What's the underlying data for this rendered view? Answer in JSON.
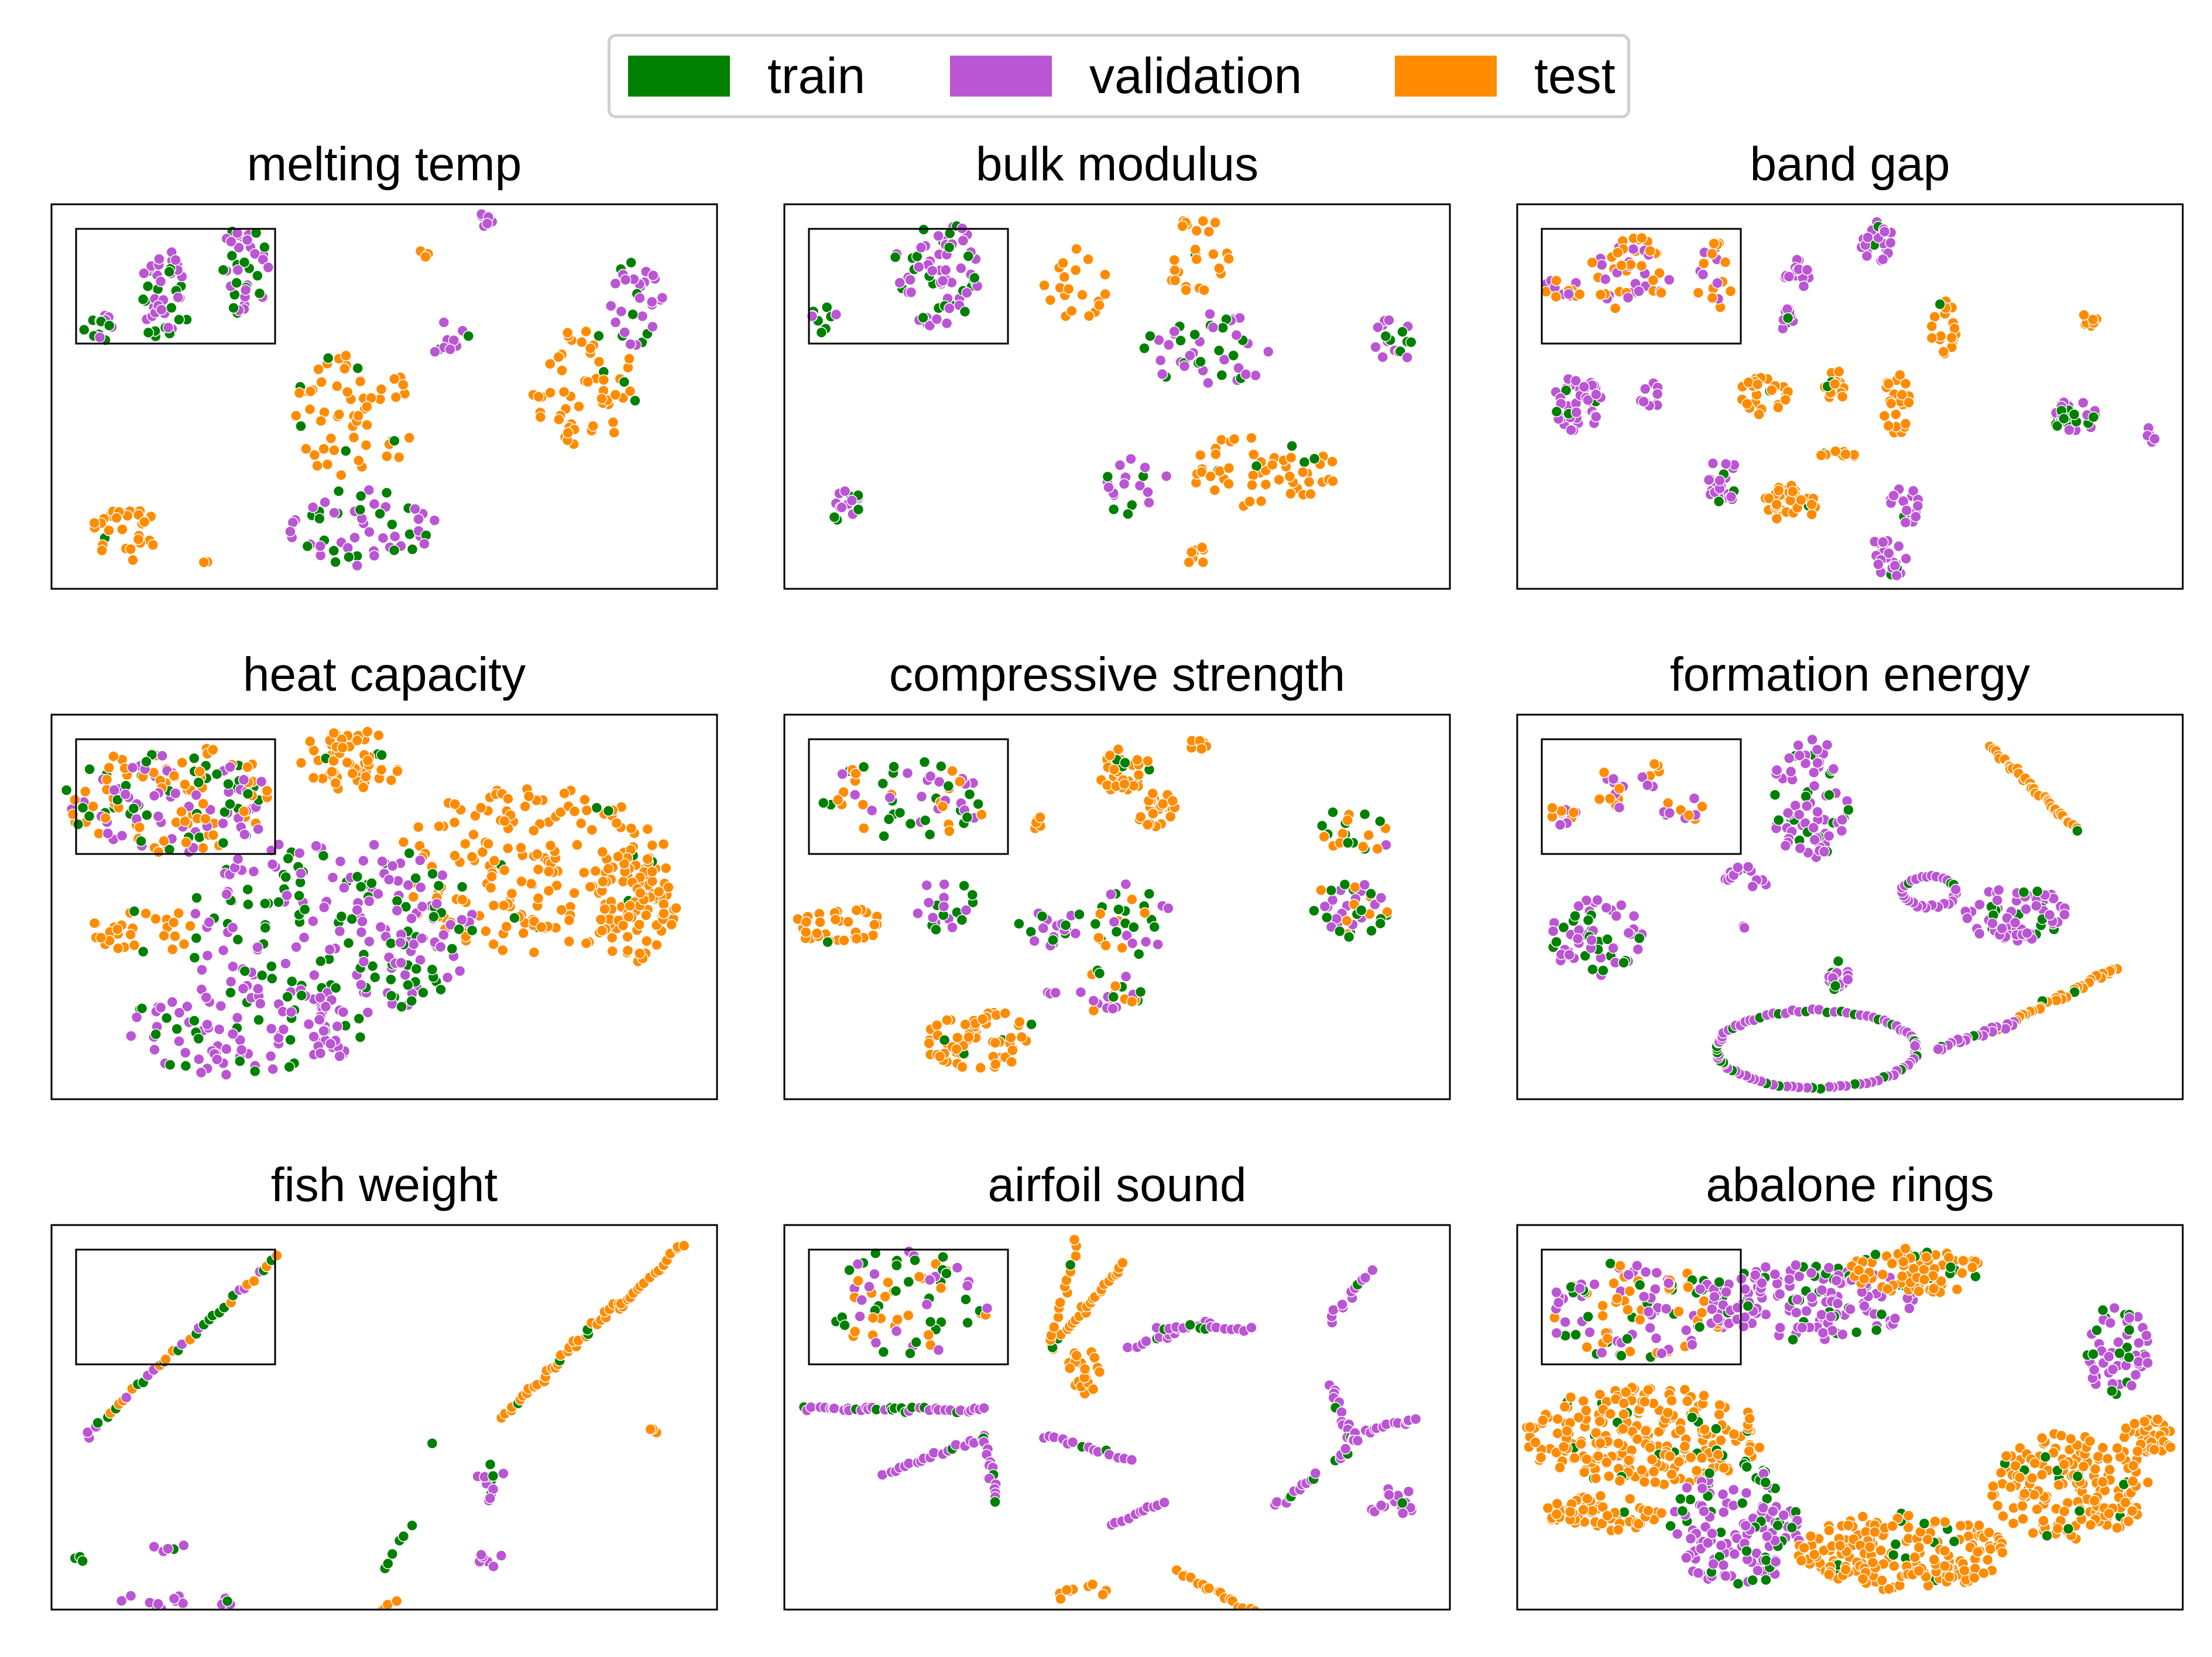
{
  "legend": [
    {
      "name": "train",
      "color": "#008000"
    },
    {
      "name": "validation",
      "color": "#BA55D3"
    },
    {
      "name": "test",
      "color": "#FF8C00"
    }
  ],
  "chart_data": [
    {
      "type": "scatter",
      "title": "melting temp",
      "clusters": [
        {
          "mix": "train_val",
          "cx": 0.07,
          "cy": 0.32,
          "rx": 0.025,
          "ry": 0.04,
          "n": 14
        },
        {
          "mix": "train_val",
          "cx": 0.17,
          "cy": 0.24,
          "rx": 0.04,
          "ry": 0.12,
          "n": 45
        },
        {
          "mix": "train_val",
          "cx": 0.29,
          "cy": 0.17,
          "rx": 0.04,
          "ry": 0.12,
          "n": 40
        },
        {
          "mix": "val",
          "cx": 0.65,
          "cy": 0.05,
          "rx": 0.015,
          "ry": 0.03,
          "n": 7
        },
        {
          "mix": "test",
          "cx": 0.55,
          "cy": 0.13,
          "rx": 0.02,
          "ry": 0.01,
          "n": 4
        },
        {
          "mix": "train_val",
          "cx": 0.6,
          "cy": 0.35,
          "rx": 0.03,
          "ry": 0.07,
          "n": 10
        },
        {
          "mix": "test",
          "cx": 0.8,
          "cy": 0.48,
          "rx": 0.08,
          "ry": 0.16,
          "n": 55
        },
        {
          "mix": "train_val",
          "cx": 0.88,
          "cy": 0.25,
          "rx": 0.04,
          "ry": 0.12,
          "n": 30
        },
        {
          "mix": "test",
          "cx": 0.45,
          "cy": 0.55,
          "rx": 0.1,
          "ry": 0.17,
          "n": 60
        },
        {
          "mix": "train_val",
          "cx": 0.46,
          "cy": 0.84,
          "rx": 0.12,
          "ry": 0.1,
          "n": 55
        },
        {
          "mix": "test",
          "cx": 0.11,
          "cy": 0.85,
          "rx": 0.05,
          "ry": 0.08,
          "n": 30
        },
        {
          "mix": "test",
          "cx": 0.23,
          "cy": 0.93,
          "rx": 0.006,
          "ry": 0.006,
          "n": 2
        }
      ]
    },
    {
      "type": "scatter",
      "title": "bulk modulus",
      "clusters": [
        {
          "mix": "train_val",
          "cx": 0.06,
          "cy": 0.3,
          "rx": 0.02,
          "ry": 0.04,
          "n": 10
        },
        {
          "mix": "train_val",
          "cx": 0.23,
          "cy": 0.18,
          "rx": 0.07,
          "ry": 0.14,
          "n": 70
        },
        {
          "mix": "test",
          "cx": 0.44,
          "cy": 0.2,
          "rx": 0.05,
          "ry": 0.1,
          "n": 20
        },
        {
          "mix": "test",
          "cx": 0.62,
          "cy": 0.13,
          "rx": 0.06,
          "ry": 0.1,
          "n": 25
        },
        {
          "mix": "train_val",
          "cx": 0.64,
          "cy": 0.38,
          "rx": 0.1,
          "ry": 0.1,
          "n": 45
        },
        {
          "mix": "train_val",
          "cx": 0.91,
          "cy": 0.36,
          "rx": 0.04,
          "ry": 0.06,
          "n": 18
        },
        {
          "mix": "test",
          "cx": 0.72,
          "cy": 0.69,
          "rx": 0.11,
          "ry": 0.1,
          "n": 55
        },
        {
          "mix": "train_val",
          "cx": 0.53,
          "cy": 0.74,
          "rx": 0.05,
          "ry": 0.08,
          "n": 18
        },
        {
          "mix": "train_val",
          "cx": 0.09,
          "cy": 0.79,
          "rx": 0.03,
          "ry": 0.05,
          "n": 15
        },
        {
          "mix": "test",
          "cx": 0.62,
          "cy": 0.92,
          "rx": 0.02,
          "ry": 0.03,
          "n": 8
        }
      ]
    },
    {
      "type": "scatter",
      "title": "band gap",
      "clusters": [
        {
          "mix": "val_test",
          "cx": 0.07,
          "cy": 0.22,
          "rx": 0.03,
          "ry": 0.03,
          "n": 15
        },
        {
          "mix": "val_test",
          "cx": 0.17,
          "cy": 0.18,
          "rx": 0.06,
          "ry": 0.1,
          "n": 50
        },
        {
          "mix": "val_test",
          "cx": 0.3,
          "cy": 0.2,
          "rx": 0.03,
          "ry": 0.1,
          "n": 20
        },
        {
          "mix": "val",
          "cx": 0.54,
          "cy": 0.09,
          "rx": 0.025,
          "ry": 0.06,
          "n": 25
        },
        {
          "mix": "val",
          "cx": 0.42,
          "cy": 0.18,
          "rx": 0.02,
          "ry": 0.04,
          "n": 15
        },
        {
          "mix": "val",
          "cx": 0.41,
          "cy": 0.3,
          "rx": 0.02,
          "ry": 0.03,
          "n": 10
        },
        {
          "mix": "test",
          "cx": 0.64,
          "cy": 0.32,
          "rx": 0.02,
          "ry": 0.07,
          "n": 20
        },
        {
          "mix": "test",
          "cx": 0.86,
          "cy": 0.3,
          "rx": 0.015,
          "ry": 0.02,
          "n": 8
        },
        {
          "mix": "val",
          "cx": 0.09,
          "cy": 0.52,
          "rx": 0.04,
          "ry": 0.07,
          "n": 45
        },
        {
          "mix": "val",
          "cx": 0.2,
          "cy": 0.5,
          "rx": 0.015,
          "ry": 0.04,
          "n": 10
        },
        {
          "mix": "test",
          "cx": 0.37,
          "cy": 0.5,
          "rx": 0.04,
          "ry": 0.05,
          "n": 25
        },
        {
          "mix": "test",
          "cx": 0.48,
          "cy": 0.47,
          "rx": 0.02,
          "ry": 0.04,
          "n": 15
        },
        {
          "mix": "test",
          "cx": 0.57,
          "cy": 0.52,
          "rx": 0.02,
          "ry": 0.08,
          "n": 25
        },
        {
          "mix": "val_train",
          "cx": 0.84,
          "cy": 0.55,
          "rx": 0.04,
          "ry": 0.04,
          "n": 30
        },
        {
          "mix": "val",
          "cx": 0.95,
          "cy": 0.6,
          "rx": 0.01,
          "ry": 0.03,
          "n": 6
        },
        {
          "mix": "val_train",
          "cx": 0.31,
          "cy": 0.72,
          "rx": 0.025,
          "ry": 0.06,
          "n": 25
        },
        {
          "mix": "test",
          "cx": 0.41,
          "cy": 0.78,
          "rx": 0.04,
          "ry": 0.05,
          "n": 35
        },
        {
          "mix": "test",
          "cx": 0.48,
          "cy": 0.65,
          "rx": 0.03,
          "ry": 0.015,
          "n": 12
        },
        {
          "mix": "val",
          "cx": 0.59,
          "cy": 0.78,
          "rx": 0.03,
          "ry": 0.05,
          "n": 20
        },
        {
          "mix": "val",
          "cx": 0.56,
          "cy": 0.91,
          "rx": 0.03,
          "ry": 0.06,
          "n": 25
        }
      ]
    },
    {
      "type": "scatter",
      "title": "heat capacity",
      "clusters": [
        {
          "mix": "all",
          "cx": 0.18,
          "cy": 0.22,
          "rx": 0.16,
          "ry": 0.14,
          "n": 170
        },
        {
          "mix": "test",
          "cx": 0.45,
          "cy": 0.12,
          "rx": 0.08,
          "ry": 0.08,
          "n": 60
        },
        {
          "mix": "test",
          "cx": 0.72,
          "cy": 0.4,
          "rx": 0.21,
          "ry": 0.22,
          "n": 190
        },
        {
          "mix": "test",
          "cx": 0.88,
          "cy": 0.5,
          "rx": 0.06,
          "ry": 0.16,
          "n": 80
        },
        {
          "mix": "train_val",
          "cx": 0.42,
          "cy": 0.56,
          "rx": 0.22,
          "ry": 0.24,
          "n": 230
        },
        {
          "mix": "val_train",
          "cx": 0.29,
          "cy": 0.82,
          "rx": 0.18,
          "ry": 0.12,
          "n": 100
        },
        {
          "mix": "test",
          "cx": 0.14,
          "cy": 0.56,
          "rx": 0.08,
          "ry": 0.06,
          "n": 30
        }
      ]
    },
    {
      "type": "scatter",
      "title": "compressive strength",
      "clusters": [
        {
          "mix": "all",
          "cx": 0.18,
          "cy": 0.22,
          "rx": 0.13,
          "ry": 0.1,
          "n": 60
        },
        {
          "mix": "test",
          "cx": 0.5,
          "cy": 0.14,
          "rx": 0.05,
          "ry": 0.06,
          "n": 35
        },
        {
          "mix": "test",
          "cx": 0.56,
          "cy": 0.25,
          "rx": 0.03,
          "ry": 0.05,
          "n": 25
        },
        {
          "mix": "test",
          "cx": 0.62,
          "cy": 0.08,
          "rx": 0.015,
          "ry": 0.015,
          "n": 6
        },
        {
          "mix": "test",
          "cx": 0.38,
          "cy": 0.28,
          "rx": 0.01,
          "ry": 0.02,
          "n": 5
        },
        {
          "mix": "all",
          "cx": 0.86,
          "cy": 0.3,
          "rx": 0.06,
          "ry": 0.06,
          "n": 25
        },
        {
          "mix": "all",
          "cx": 0.85,
          "cy": 0.5,
          "rx": 0.06,
          "ry": 0.08,
          "n": 40
        },
        {
          "mix": "test",
          "cx": 0.08,
          "cy": 0.55,
          "rx": 0.07,
          "ry": 0.05,
          "n": 35
        },
        {
          "mix": "train_val",
          "cx": 0.24,
          "cy": 0.5,
          "rx": 0.06,
          "ry": 0.08,
          "n": 20
        },
        {
          "mix": "train_val",
          "cx": 0.4,
          "cy": 0.54,
          "rx": 0.05,
          "ry": 0.07,
          "n": 20
        },
        {
          "mix": "all",
          "cx": 0.52,
          "cy": 0.53,
          "rx": 0.06,
          "ry": 0.1,
          "n": 30
        },
        {
          "mix": "all",
          "cx": 0.49,
          "cy": 0.72,
          "rx": 0.05,
          "ry": 0.06,
          "n": 25
        },
        {
          "mix": "test",
          "cx": 0.3,
          "cy": 0.85,
          "rx": 0.09,
          "ry": 0.08,
          "n": 70
        },
        {
          "mix": "val",
          "cx": 0.4,
          "cy": 0.72,
          "rx": 0.01,
          "ry": 0.01,
          "n": 3
        }
      ]
    },
    {
      "type": "scatter",
      "title": "formation energy",
      "clusters": [
        {
          "mix": "val_test",
          "cx": 0.07,
          "cy": 0.25,
          "rx": 0.02,
          "ry": 0.04,
          "n": 12
        },
        {
          "mix": "val_test",
          "cx": 0.14,
          "cy": 0.2,
          "rx": 0.02,
          "ry": 0.06,
          "n": 12
        },
        {
          "mix": "val_test",
          "cx": 0.2,
          "cy": 0.15,
          "rx": 0.015,
          "ry": 0.04,
          "n": 8
        },
        {
          "mix": "val_test",
          "cx": 0.25,
          "cy": 0.25,
          "rx": 0.03,
          "ry": 0.04,
          "n": 12
        },
        {
          "mix": "val_train",
          "cx": 0.44,
          "cy": 0.22,
          "rx": 0.06,
          "ry": 0.16,
          "n": 80
        },
        {
          "mix": "val",
          "cx": 0.35,
          "cy": 0.42,
          "rx": 0.04,
          "ry": 0.03,
          "n": 15
        },
        {
          "mix": "val_train",
          "cx": 0.12,
          "cy": 0.58,
          "rx": 0.07,
          "ry": 0.1,
          "n": 60
        },
        {
          "mix": "val_train",
          "cx": 0.75,
          "cy": 0.52,
          "rx": 0.08,
          "ry": 0.07,
          "n": 70
        },
        {
          "mix": "val_train",
          "cx": 0.48,
          "cy": 0.68,
          "rx": 0.02,
          "ry": 0.04,
          "n": 20
        },
        {
          "mix": "val",
          "cx": 0.34,
          "cy": 0.55,
          "rx": 0.005,
          "ry": 0.005,
          "n": 2
        }
      ],
      "lines": [
        {
          "mix": "test",
          "x0": 0.71,
          "y0": 0.08,
          "x1": 0.84,
          "y1": 0.3,
          "n": 40
        },
        {
          "mix": "test",
          "x0": 0.9,
          "y0": 0.66,
          "x1": 0.72,
          "y1": 0.82,
          "n": 35
        },
        {
          "mix": "val",
          "x0": 0.75,
          "y0": 0.8,
          "x1": 0.63,
          "y1": 0.87,
          "n": 20
        }
      ],
      "rings": [
        {
          "mix": "val",
          "cx": 0.62,
          "cy": 0.46,
          "rx": 0.04,
          "ry": 0.04,
          "n": 30
        },
        {
          "mix": "val_train",
          "cx": 0.45,
          "cy": 0.87,
          "rx": 0.15,
          "ry": 0.1,
          "n": 90
        }
      ]
    },
    {
      "type": "scatter",
      "title": "fish weight",
      "clusters": [
        {
          "mix": "train_val",
          "cx": 0.04,
          "cy": 0.87,
          "rx": 0.01,
          "ry": 0.01,
          "n": 3
        },
        {
          "mix": "train_val",
          "cx": 0.18,
          "cy": 0.84,
          "rx": 0.03,
          "ry": 0.01,
          "n": 6
        },
        {
          "mix": "val_train",
          "cx": 0.15,
          "cy": 0.98,
          "rx": 0.05,
          "ry": 0.03,
          "n": 10
        },
        {
          "mix": "val_train",
          "cx": 0.27,
          "cy": 0.99,
          "rx": 0.02,
          "ry": 0.03,
          "n": 6
        },
        {
          "mix": "train_val",
          "cx": 0.66,
          "cy": 0.65,
          "rx": 0.02,
          "ry": 0.04,
          "n": 8
        },
        {
          "mix": "val",
          "cx": 0.66,
          "cy": 0.7,
          "rx": 0.01,
          "ry": 0.02,
          "n": 4
        },
        {
          "mix": "train",
          "cx": 0.57,
          "cy": 0.57,
          "rx": 0.004,
          "ry": 0.004,
          "n": 1
        },
        {
          "mix": "train_val",
          "cx": 0.66,
          "cy": 0.87,
          "rx": 0.02,
          "ry": 0.02,
          "n": 6
        },
        {
          "mix": "test",
          "cx": 0.91,
          "cy": 0.53,
          "rx": 0.01,
          "ry": 0.02,
          "n": 3
        }
      ],
      "lines": [
        {
          "mix": "all",
          "x0": 0.05,
          "y0": 0.55,
          "x1": 0.34,
          "y1": 0.08,
          "n": 40
        },
        {
          "mix": "test",
          "x0": 0.26,
          "y0": 1.2,
          "x1": 0.52,
          "y1": 0.98,
          "n": 30
        },
        {
          "mix": "train",
          "x0": 0.5,
          "y0": 0.9,
          "x1": 0.54,
          "y1": 0.78,
          "n": 6
        },
        {
          "mix": "test",
          "x0": 0.68,
          "y0": 0.5,
          "x1": 0.85,
          "y1": 0.2,
          "n": 35
        },
        {
          "mix": "test",
          "x0": 0.85,
          "y0": 0.22,
          "x1": 0.95,
          "y1": 0.05,
          "n": 20
        }
      ]
    },
    {
      "type": "scatter",
      "title": "airfoil sound",
      "clusters": [
        {
          "mix": "all",
          "cx": 0.18,
          "cy": 0.2,
          "rx": 0.13,
          "ry": 0.14,
          "n": 70
        },
        {
          "mix": "test",
          "cx": 0.45,
          "cy": 0.38,
          "rx": 0.03,
          "ry": 0.06,
          "n": 20
        },
        {
          "mix": "test",
          "cx": 0.45,
          "cy": 0.96,
          "rx": 0.04,
          "ry": 0.03,
          "n": 10
        },
        {
          "mix": "val",
          "cx": 0.91,
          "cy": 0.72,
          "rx": 0.04,
          "ry": 0.04,
          "n": 15
        }
      ],
      "lines": [
        {
          "mix": "test",
          "x0": 0.4,
          "y0": 0.32,
          "x1": 0.51,
          "y1": 0.1,
          "n": 25
        },
        {
          "mix": "test",
          "x0": 0.4,
          "y0": 0.32,
          "x1": 0.44,
          "y1": 0.04,
          "n": 15
        },
        {
          "mix": "val",
          "x0": 0.52,
          "y0": 0.32,
          "x1": 0.64,
          "y1": 0.25,
          "n": 15
        },
        {
          "mix": "val_train",
          "x0": 0.56,
          "y0": 0.27,
          "x1": 0.7,
          "y1": 0.27,
          "n": 15
        },
        {
          "mix": "val",
          "x0": 0.82,
          "y0": 0.25,
          "x1": 0.88,
          "y1": 0.12,
          "n": 12
        },
        {
          "mix": "val_train",
          "x0": 0.03,
          "y0": 0.48,
          "x1": 0.3,
          "y1": 0.48,
          "n": 40
        },
        {
          "mix": "val",
          "x0": 0.15,
          "y0": 0.65,
          "x1": 0.3,
          "y1": 0.55,
          "n": 20
        },
        {
          "mix": "val",
          "x0": 0.3,
          "y0": 0.55,
          "x1": 0.32,
          "y1": 0.72,
          "n": 15
        },
        {
          "mix": "val",
          "x0": 0.39,
          "y0": 0.55,
          "x1": 0.52,
          "y1": 0.61,
          "n": 15
        },
        {
          "mix": "val",
          "x0": 0.49,
          "y0": 0.78,
          "x1": 0.57,
          "y1": 0.72,
          "n": 12
        },
        {
          "mix": "val",
          "x0": 0.82,
          "y0": 0.42,
          "x1": 0.85,
          "y1": 0.55,
          "n": 12
        },
        {
          "mix": "val",
          "x0": 0.85,
          "y0": 0.55,
          "x1": 0.95,
          "y1": 0.5,
          "n": 15
        },
        {
          "mix": "val",
          "x0": 0.83,
          "y0": 0.62,
          "x1": 0.86,
          "y1": 0.55,
          "n": 8
        },
        {
          "mix": "val",
          "x0": 0.74,
          "y0": 0.73,
          "x1": 0.8,
          "y1": 0.65,
          "n": 12
        },
        {
          "mix": "test",
          "x0": 0.59,
          "y0": 0.9,
          "x1": 0.75,
          "y1": 1.05,
          "n": 25
        }
      ]
    },
    {
      "type": "scatter",
      "title": "abalone rings",
      "clusters": [
        {
          "mix": "all",
          "cx": 0.18,
          "cy": 0.22,
          "rx": 0.14,
          "ry": 0.13,
          "n": 120
        },
        {
          "mix": "val_train",
          "cx": 0.44,
          "cy": 0.2,
          "rx": 0.16,
          "ry": 0.1,
          "n": 150
        },
        {
          "mix": "test",
          "cx": 0.6,
          "cy": 0.12,
          "rx": 0.1,
          "ry": 0.06,
          "n": 80
        },
        {
          "mix": "val_train",
          "cx": 0.9,
          "cy": 0.32,
          "rx": 0.05,
          "ry": 0.12,
          "n": 60
        },
        {
          "mix": "test",
          "cx": 0.19,
          "cy": 0.55,
          "rx": 0.18,
          "ry": 0.13,
          "n": 250
        },
        {
          "mix": "test",
          "cx": 0.13,
          "cy": 0.75,
          "rx": 0.09,
          "ry": 0.05,
          "n": 60
        },
        {
          "mix": "val_train",
          "cx": 0.33,
          "cy": 0.78,
          "rx": 0.1,
          "ry": 0.16,
          "n": 140
        },
        {
          "mix": "test",
          "cx": 0.58,
          "cy": 0.85,
          "rx": 0.16,
          "ry": 0.1,
          "n": 200
        },
        {
          "mix": "test",
          "cx": 0.83,
          "cy": 0.68,
          "rx": 0.12,
          "ry": 0.14,
          "n": 180
        },
        {
          "mix": "test",
          "cx": 0.95,
          "cy": 0.55,
          "rx": 0.04,
          "ry": 0.05,
          "n": 40
        }
      ]
    }
  ]
}
